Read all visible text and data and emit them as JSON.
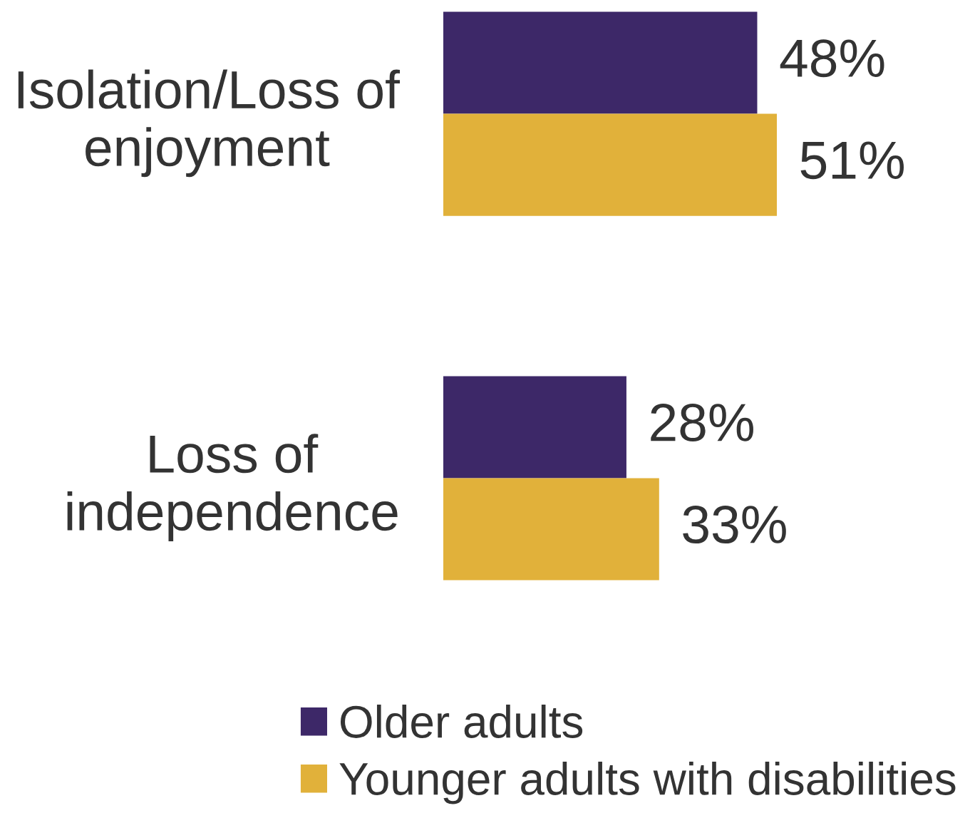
{
  "chart_data": {
    "type": "bar",
    "orientation": "horizontal",
    "categories": [
      "Isolation/Loss of\nenjoyment",
      "Loss of\nindependence"
    ],
    "series": [
      {
        "name": "Older adults",
        "color": "#3d2868",
        "values": [
          48,
          28
        ],
        "value_labels": [
          "48%",
          "28%"
        ]
      },
      {
        "name": "Younger adults with disabilities",
        "color": "#e1b13a",
        "values": [
          51,
          33
        ],
        "value_labels": [
          "51%",
          "33%"
        ]
      }
    ],
    "tick_labels": "y",
    "legend": "bottom",
    "grid": false
  }
}
